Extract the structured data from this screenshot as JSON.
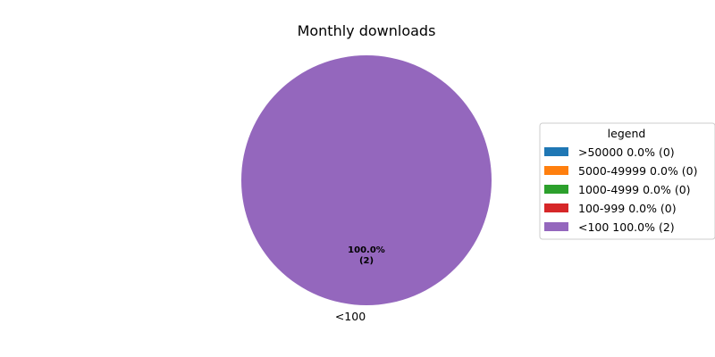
{
  "chart_data": {
    "type": "pie",
    "title": "Monthly downloads",
    "categories": [
      ">50000",
      "5000-49999",
      "1000-4999",
      "100-999",
      "<100"
    ],
    "values": [
      0,
      0,
      0,
      0,
      2
    ],
    "percentages": [
      0.0,
      0.0,
      0.0,
      0.0,
      100.0
    ],
    "colors": [
      "#1f77b4",
      "#ff7f0e",
      "#2ca02c",
      "#d62728",
      "#9467bd"
    ],
    "slice_label": "<100",
    "slice_pct_label": "100.0%",
    "slice_count_label": "(2)",
    "legend": {
      "title": "legend",
      "placement": "right",
      "entries": [
        ">50000 0.0% (0)",
        "5000-49999 0.0% (0)",
        "1000-4999 0.0% (0)",
        "100-999 0.0% (0)",
        "<100 100.0% (2)"
      ]
    }
  }
}
